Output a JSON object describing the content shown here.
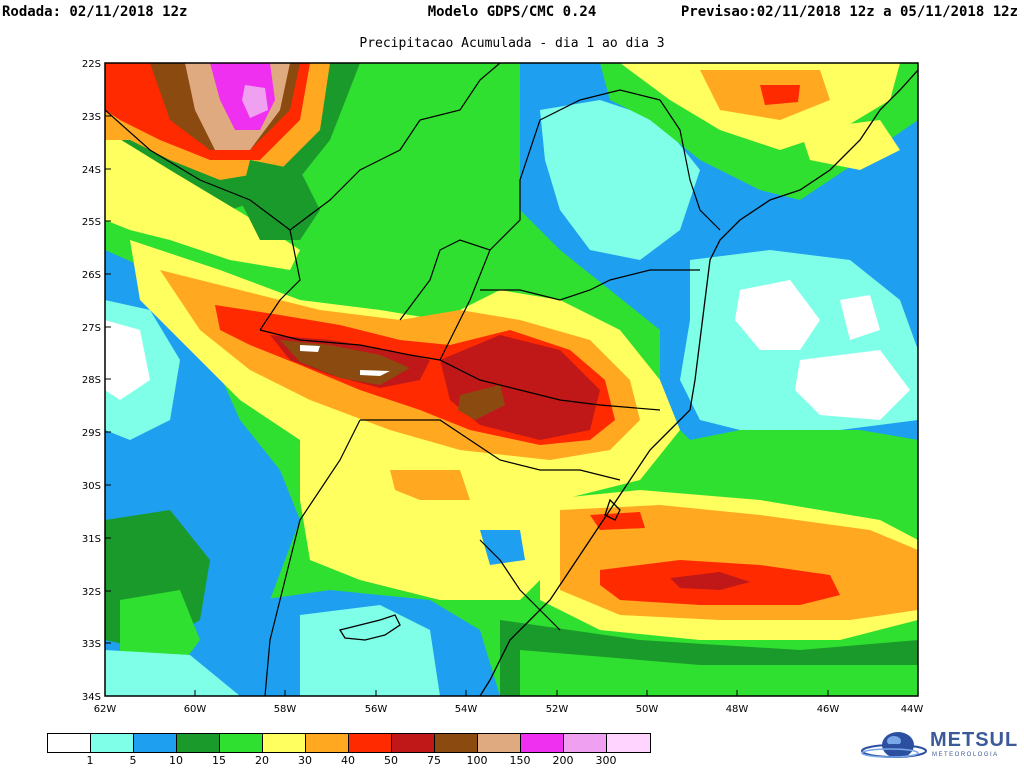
{
  "header": {
    "rodada": "Rodada: 02/11/2018 12z",
    "modelo": "Modelo GDPS/CMC 0.24",
    "previsao": "Previsao:02/11/2018 12z a 05/11/2018 12z",
    "subtitle": "Precipitacao Acumulada - dia 1 ao dia 3"
  },
  "map": {
    "lat_labels": [
      "22S",
      "23S",
      "24S",
      "25S",
      "26S",
      "27S",
      "28S",
      "29S",
      "30S",
      "31S",
      "32S",
      "33S",
      "34S"
    ],
    "lon_labels": [
      "62W",
      "60W",
      "58W",
      "56W",
      "54W",
      "52W",
      "50W",
      "48W",
      "46W",
      "44W"
    ],
    "lat_range": [
      -34,
      -22
    ],
    "lon_range": [
      -62,
      -44
    ]
  },
  "legend": {
    "ticks": [
      "1",
      "5",
      "10",
      "15",
      "20",
      "30",
      "40",
      "50",
      "75",
      "100",
      "150",
      "200",
      "300"
    ],
    "colors": [
      "#ffffff",
      "#80ffe8",
      "#1e9fef",
      "#1a9a2a",
      "#30e030",
      "#ffff60",
      "#ffa820",
      "#ff2a00",
      "#c01818",
      "#8a4a10",
      "#e0aa80",
      "#f030f0",
      "#f0a0f0",
      "#ffd4ff"
    ]
  },
  "logo": {
    "name": "METSUL",
    "subtitle": "METEOROLOGIA"
  }
}
